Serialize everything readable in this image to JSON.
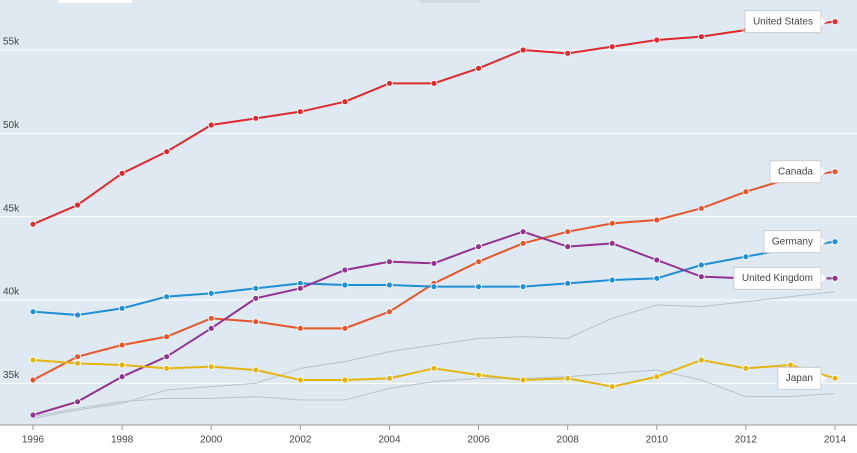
{
  "chart_data": {
    "type": "line",
    "x": [
      1996,
      1997,
      1998,
      1999,
      2000,
      2001,
      2002,
      2003,
      2004,
      2005,
      2006,
      2007,
      2008,
      2009,
      2010,
      2011,
      2012,
      2013,
      2014
    ],
    "series": [
      {
        "color": "#b8c2ca",
        "values": [
          32900,
          33400,
          33800,
          34600,
          34800,
          35000,
          35900,
          36300,
          36900,
          37300,
          37700,
          37800,
          37700,
          38900,
          39700,
          39600,
          39900,
          40200,
          40500
        ]
      },
      {
        "color": "#b8c2ca",
        "values": [
          33000,
          33500,
          33900,
          34100,
          34100,
          34200,
          34000,
          34000,
          34700,
          35100,
          35300,
          35300,
          35400,
          35600,
          35800,
          35200,
          34200,
          34200,
          34400
        ]
      },
      {
        "name": "United States",
        "color": "#e0282d",
        "values": [
          44550,
          45700,
          47600,
          48900,
          50500,
          50900,
          51300,
          51900,
          53000,
          53000,
          53900,
          55000,
          54800,
          55200,
          55600,
          55800,
          56200,
          56400,
          56700
        ]
      },
      {
        "name": "Canada",
        "color": "#e8552b",
        "values": [
          35200,
          36600,
          37300,
          37800,
          38900,
          38700,
          38300,
          38300,
          39300,
          41000,
          42300,
          43400,
          44100,
          44600,
          44800,
          45500,
          46500,
          47300,
          47700
        ]
      },
      {
        "name": "Germany",
        "color": "#1f8fd6",
        "values": [
          39300,
          39100,
          39500,
          40200,
          40400,
          40700,
          41000,
          40900,
          40900,
          40800,
          40800,
          40800,
          41000,
          41200,
          41300,
          42100,
          42600,
          43100,
          43500
        ]
      },
      {
        "name": "United Kingdom",
        "color": "#93338f",
        "values": [
          33100,
          33900,
          35400,
          36600,
          38300,
          40100,
          40700,
          41800,
          42300,
          42200,
          43200,
          44100,
          43200,
          43400,
          42400,
          41400,
          41300,
          41300,
          41300
        ]
      },
      {
        "name": "Japan",
        "color": "#e5b50f",
        "values": [
          36400,
          36200,
          36100,
          35900,
          36000,
          35800,
          35200,
          35200,
          35300,
          35900,
          35500,
          35200,
          35300,
          34800,
          35400,
          36400,
          35900,
          36100,
          35300
        ]
      }
    ],
    "xlim": [
      1996,
      2014
    ],
    "xticks": [
      1996,
      1998,
      2000,
      2002,
      2004,
      2006,
      2008,
      2010,
      2012,
      2014
    ],
    "ylim": [
      32500,
      58000
    ],
    "yticks": [
      {
        "value": 35000,
        "label": "35k"
      },
      {
        "value": 40000,
        "label": "40k"
      },
      {
        "value": 45000,
        "label": "45k"
      },
      {
        "value": 50000,
        "label": "50k"
      },
      {
        "value": 55000,
        "label": "55k"
      }
    ],
    "grid": true
  }
}
